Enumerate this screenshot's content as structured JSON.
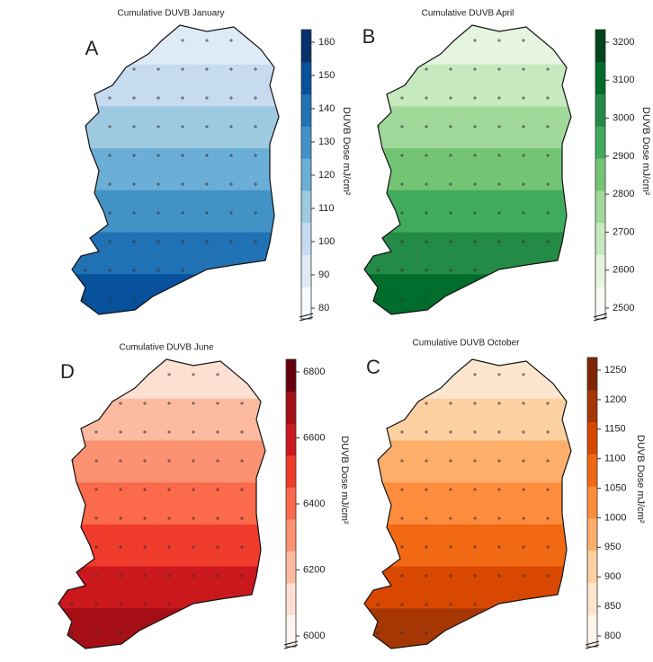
{
  "panels": [
    {
      "title": "Cumulative  DUVB January",
      "letter": "A",
      "colorbar_label": "DUVB Dose mJ/cm²",
      "ticks": [
        160,
        150,
        140,
        130,
        120,
        110,
        100,
        90,
        80
      ],
      "colors": [
        "#f7fbff",
        "#deebf7",
        "#c6dbef",
        "#9ecae1",
        "#6baed6",
        "#4292c6",
        "#2171b5",
        "#08519c",
        "#08306b"
      ]
    },
    {
      "title": "Cumulative  DUVB April",
      "letter": "B",
      "colorbar_label": "DUVB Dose mJ/cm²",
      "ticks": [
        3200,
        3100,
        3000,
        2900,
        2800,
        2700,
        2600,
        2500
      ],
      "colors": [
        "#f7fcf5",
        "#e5f5e0",
        "#c7e9c0",
        "#a1d99b",
        "#74c476",
        "#41ab5d",
        "#238b45",
        "#006d2c",
        "#00441b"
      ]
    },
    {
      "title": "Cumulative  DUVB June",
      "letter": "D",
      "colorbar_label": "DUVB Dose mJ/cm²",
      "ticks": [
        6800,
        6600,
        6400,
        6200,
        6000
      ],
      "colors": [
        "#fff5f0",
        "#fee0d2",
        "#fcbba1",
        "#fc9272",
        "#fb6a4a",
        "#ef3b2c",
        "#cb181d",
        "#a50f15",
        "#67000d"
      ]
    },
    {
      "title": "Cumulative  DUVB October",
      "letter": "C",
      "colorbar_label": "DUVB Dose mJ/cm²",
      "ticks": [
        1250,
        1200,
        1150,
        1100,
        1050,
        1000,
        950,
        900,
        850,
        800
      ],
      "colors": [
        "#fff5eb",
        "#fee6ce",
        "#fdd0a2",
        "#fdae6b",
        "#fd8d3c",
        "#f16913",
        "#d94801",
        "#a63603",
        "#7f2704"
      ]
    }
  ]
}
